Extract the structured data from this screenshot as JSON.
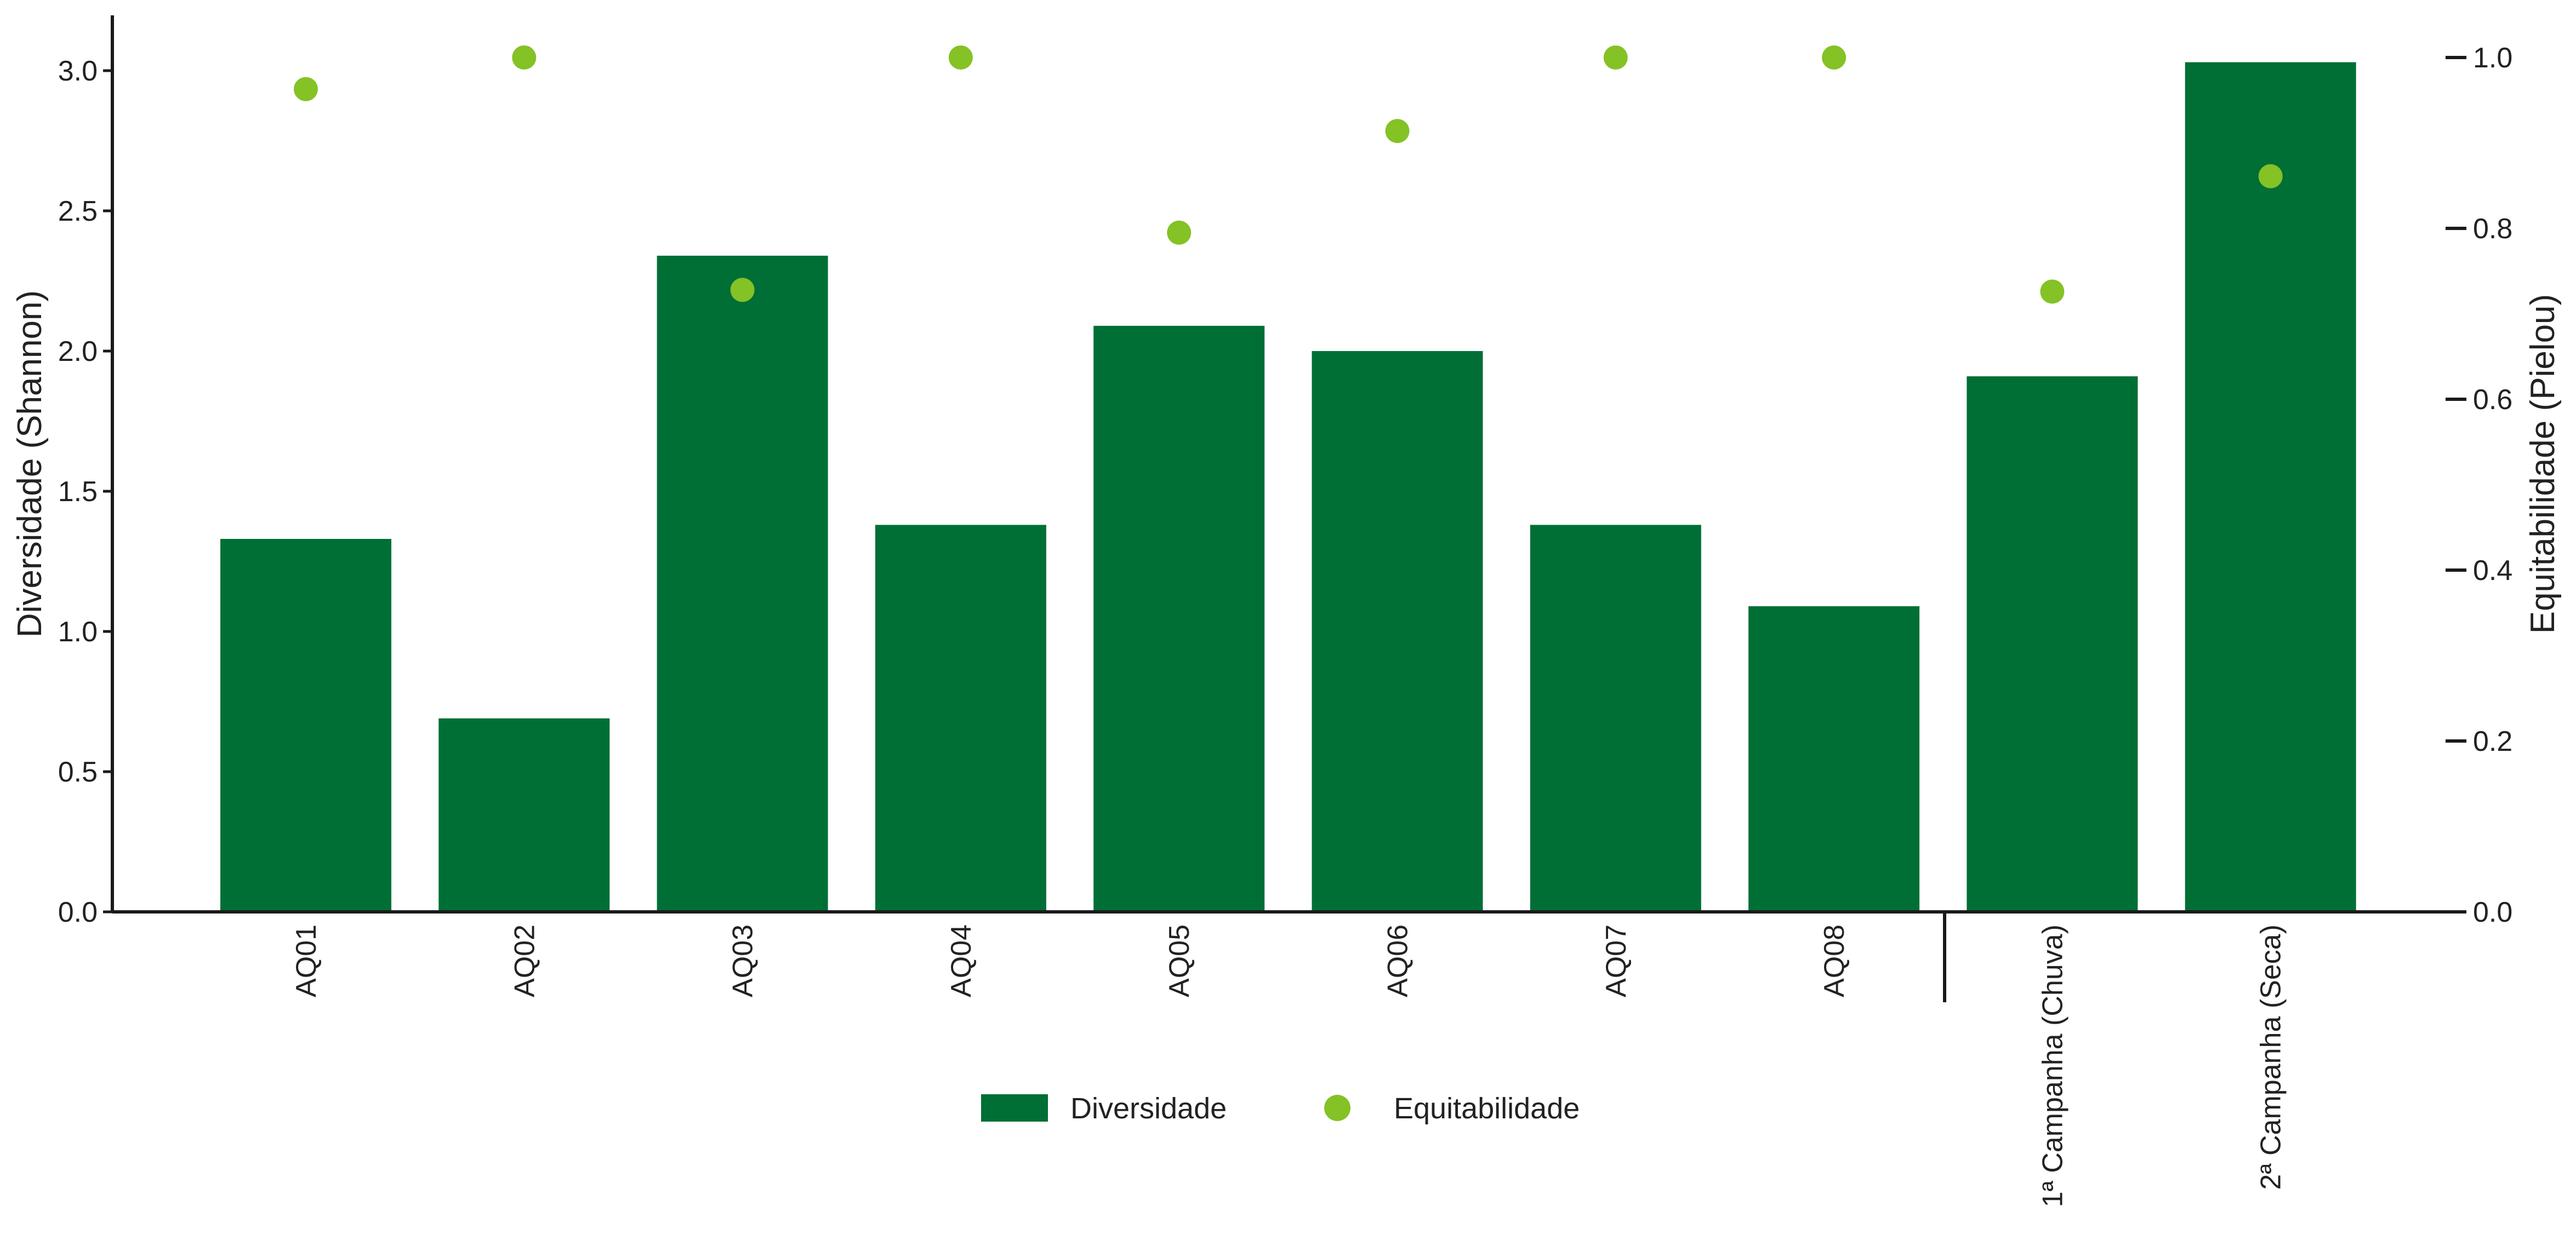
{
  "chart_data": {
    "type": "bar",
    "categories": [
      "AQ01",
      "AQ02",
      "AQ03",
      "AQ04",
      "AQ05",
      "AQ06",
      "AQ07",
      "AQ08",
      "1ª Campanha (Chuva)",
      "2ª Campanha (Seca)"
    ],
    "series": [
      {
        "name": "Diversidade",
        "type": "bar",
        "axis": "left",
        "values": [
          1.33,
          0.69,
          2.34,
          1.38,
          2.09,
          2.0,
          1.38,
          1.09,
          1.91,
          3.03
        ]
      },
      {
        "name": "Equitabilidade",
        "type": "scatter",
        "axis": "right",
        "values": [
          0.963,
          1.0,
          0.728,
          1.0,
          0.795,
          0.914,
          1.0,
          1.0,
          0.726,
          0.861
        ]
      }
    ],
    "ylabel": "Diversidade (Shannon)",
    "ylabel_right": "Equitabilidade (Pielou)",
    "ylim": [
      0,
      3.2
    ],
    "ylim_right": [
      0,
      1.056
    ],
    "yticks": [
      "0.0",
      "0.5",
      "1.0",
      "1.5",
      "2.0",
      "2.5",
      "3.0"
    ],
    "yticks_right": [
      "0.0",
      "0.2",
      "0.4",
      "0.6",
      "0.8",
      "1.0"
    ],
    "grid": false,
    "legend_position": "bottom-center",
    "colors": {
      "bar": "#006f35",
      "dot": "#84c225",
      "axis": "#1a1a1a"
    }
  }
}
